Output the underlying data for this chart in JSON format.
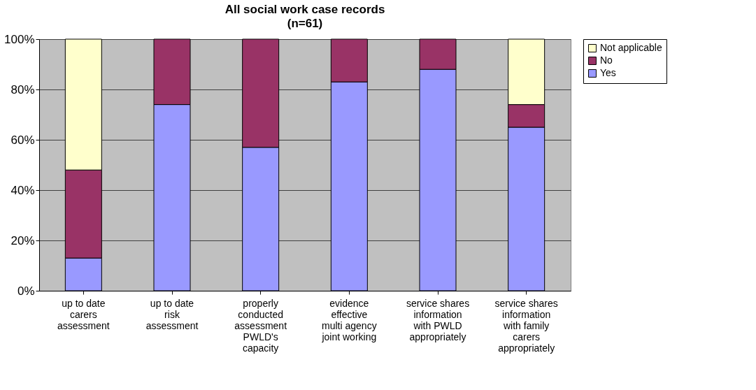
{
  "chart_data": {
    "type": "bar",
    "title": "All social work case records",
    "subtitle": "(n=61)",
    "stacked": true,
    "categories": [
      "up to date carers assessment",
      "up to date risk assessment",
      "properly conducted assessment PWLD's capacity",
      "evidence effective multi agency joint working",
      "service shares information with PWLD appropriately",
      "service shares information with family carers appropriately"
    ],
    "series": [
      {
        "name": "Yes",
        "color": "#9999ff",
        "values": [
          13,
          74,
          57,
          83,
          88,
          65
        ]
      },
      {
        "name": "No",
        "color": "#993366",
        "values": [
          35,
          26,
          43,
          17,
          12,
          9
        ]
      },
      {
        "name": "Not applicable",
        "color": "#ffffcc",
        "values": [
          52,
          null,
          null,
          null,
          null,
          26
        ]
      }
    ],
    "ylim": [
      0,
      100
    ],
    "yticks": [
      {
        "value": 0,
        "label": "0%"
      },
      {
        "value": 20,
        "label": "20%"
      },
      {
        "value": 40,
        "label": "40%"
      },
      {
        "value": 60,
        "label": "60%"
      },
      {
        "value": 80,
        "label": "80%"
      },
      {
        "value": 100,
        "label": "100%"
      }
    ],
    "grid": "y",
    "legend": "right"
  }
}
